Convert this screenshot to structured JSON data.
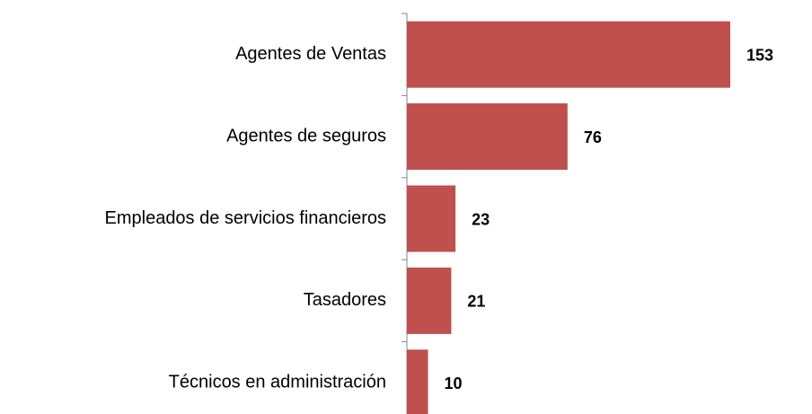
{
  "chart_data": {
    "type": "barh",
    "categories": [
      "Agentes de Ventas",
      "Agentes de seguros",
      "Empleados de servicios financieros",
      "Tasadores",
      "Técnicos en administración"
    ],
    "values": [
      153,
      76,
      23,
      21,
      10
    ],
    "color": "#c0504d",
    "xlim": [
      0,
      170
    ]
  }
}
